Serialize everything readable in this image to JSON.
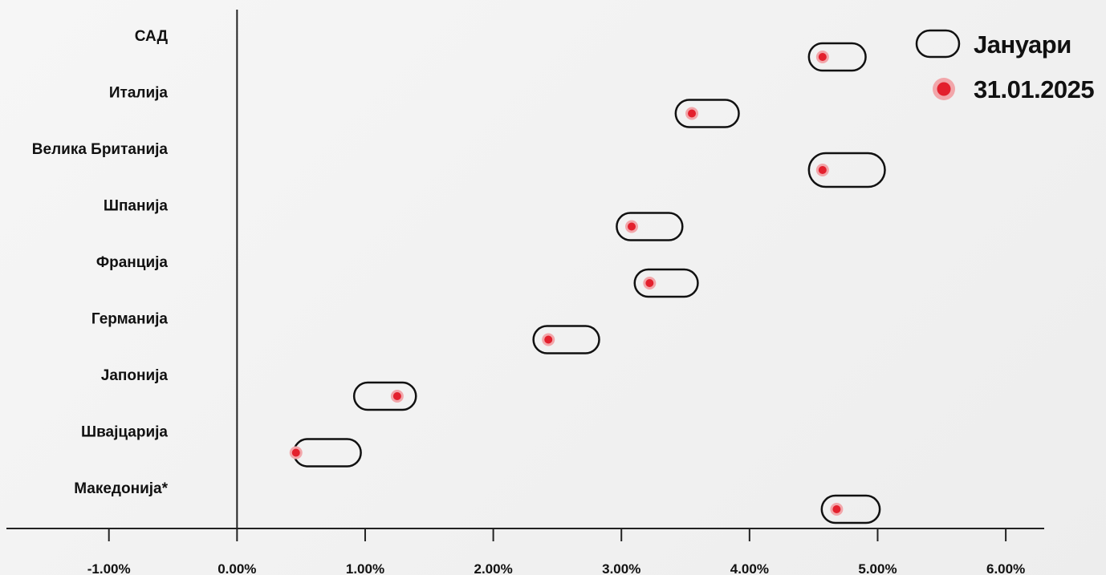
{
  "chart_data": {
    "type": "scatter",
    "categories": [
      "САД",
      "Италија",
      "Велика Британија",
      "Шпанија",
      "Франција",
      "Германија",
      "Јапонија",
      "Швајцарија",
      "Македонија*"
    ],
    "series": [
      {
        "name": "Јануари",
        "marker": "pill",
        "ranges": [
          [
            4.57,
            4.8
          ],
          [
            3.53,
            3.81
          ],
          [
            4.57,
            4.95
          ],
          [
            3.07,
            3.37
          ],
          [
            3.21,
            3.49
          ],
          [
            2.42,
            2.72
          ],
          [
            1.02,
            1.29
          ],
          [
            0.55,
            0.86
          ],
          [
            4.67,
            4.91
          ]
        ]
      },
      {
        "name": "31.01.2025",
        "marker": "dot",
        "values": [
          4.57,
          3.55,
          4.57,
          3.08,
          3.22,
          2.43,
          1.25,
          0.46,
          4.68
        ]
      }
    ],
    "xlim": [
      -1.8,
      6.3
    ],
    "xticks": [
      -1,
      0,
      1,
      2,
      3,
      4,
      5,
      6
    ],
    "xtick_labels": [
      "-1.00%",
      "0.00%",
      "1.00%",
      "2.00%",
      "3.00%",
      "4.00%",
      "5.00%",
      "6.00%"
    ],
    "title": "",
    "xlabel": "",
    "ylabel": "",
    "grid": false,
    "legend": "top-right",
    "colors": {
      "dot": "#e3202d",
      "dot_halo": "#f2a6aa",
      "pill_stroke": "#111111",
      "axis": "#222222"
    }
  }
}
